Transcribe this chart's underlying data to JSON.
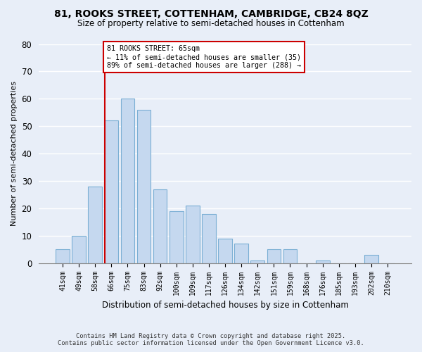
{
  "title1": "81, ROOKS STREET, COTTENHAM, CAMBRIDGE, CB24 8QZ",
  "title2": "Size of property relative to semi-detached houses in Cottenham",
  "xlabel": "Distribution of semi-detached houses by size in Cottenham",
  "ylabel": "Number of semi-detached properties",
  "bar_labels": [
    "41sqm",
    "49sqm",
    "58sqm",
    "66sqm",
    "75sqm",
    "83sqm",
    "92sqm",
    "100sqm",
    "109sqm",
    "117sqm",
    "126sqm",
    "134sqm",
    "142sqm",
    "151sqm",
    "159sqm",
    "168sqm",
    "176sqm",
    "185sqm",
    "193sqm",
    "202sqm",
    "210sqm"
  ],
  "bar_values": [
    5,
    10,
    28,
    52,
    60,
    56,
    27,
    19,
    21,
    18,
    9,
    7,
    1,
    5,
    5,
    0,
    1,
    0,
    0,
    3,
    0
  ],
  "bar_color": "#c5d8ef",
  "bar_edge_color": "#7bafd4",
  "annotation_line1": "81 ROOKS STREET: 65sqm",
  "annotation_line2": "← 11% of semi-detached houses are smaller (35)",
  "annotation_line3": "89% of semi-detached houses are larger (288) →",
  "annotation_box_color": "#ffffff",
  "annotation_box_edge": "#cc0000",
  "vline_color": "#cc0000",
  "ylim": [
    0,
    80
  ],
  "yticks": [
    0,
    10,
    20,
    30,
    40,
    50,
    60,
    70,
    80
  ],
  "bg_color": "#e8eef8",
  "grid_color": "#ffffff",
  "footer1": "Contains HM Land Registry data © Crown copyright and database right 2025.",
  "footer2": "Contains public sector information licensed under the Open Government Licence v3.0."
}
